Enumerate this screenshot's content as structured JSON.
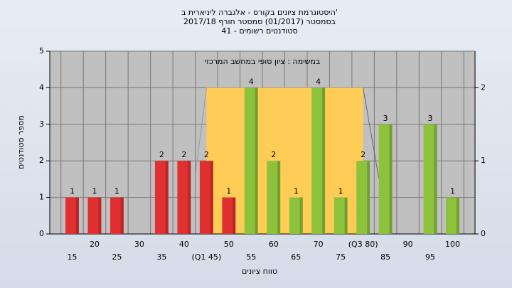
{
  "chart_data": {
    "type": "bar",
    "title": [
      "היסטוגרמת ציונים בקורס - אלגברה ליניארית ב'",
      "בסמסטר (01/2017) סמסטר חורף 2017/18",
      "סטודנטים רשומים - 41"
    ],
    "annotation": "במשימה : ציון סופי במחשב המרכזי",
    "xlabel": "טווח ציונים",
    "ylabel": "מספר סטודנטים",
    "categories": [
      "15",
      "20",
      "25",
      "30",
      "35",
      "40",
      "(Q1 45)",
      "50",
      "55",
      "60",
      "65",
      "70",
      "75",
      "(Q3 80)",
      "85",
      "90",
      "95",
      "100"
    ],
    "values": [
      1,
      1,
      1,
      null,
      2,
      2,
      2,
      1,
      4,
      2,
      1,
      4,
      1,
      2,
      3,
      null,
      3,
      1
    ],
    "colors": [
      "#e03030",
      "#e03030",
      "#e03030",
      null,
      "#e03030",
      "#e03030",
      "#e03030",
      "#e03030",
      "#8dc23c",
      "#8dc23c",
      "#8dc23c",
      "#8dc23c",
      "#8dc23c",
      "#8dc23c",
      "#8dc23c",
      null,
      "#8dc23c",
      "#8dc23c"
    ],
    "ylim": [
      0,
      5
    ],
    "yticks": [
      0,
      1,
      2,
      3,
      4,
      5
    ],
    "y2lim": [
      0,
      2.5
    ],
    "y2ticks": [
      0,
      1,
      2
    ],
    "quartile_band": {
      "from": 6,
      "to": 13,
      "value": 2,
      "axis": "y2",
      "color": "#ffcc55"
    },
    "grid": true
  }
}
